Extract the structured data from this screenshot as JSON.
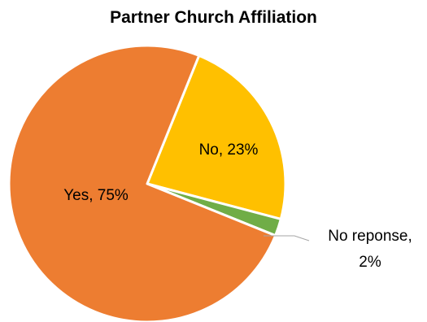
{
  "chart_data": {
    "type": "pie",
    "title": "Partner Church Affiliation",
    "legend": "none",
    "slices": [
      {
        "label": "No",
        "value": 23,
        "display": "No, 23%",
        "color": "#FFC000"
      },
      {
        "label": "No reponse",
        "value": 2,
        "display_lines": [
          "No reponse,",
          "2%"
        ],
        "color": "#70AD47"
      },
      {
        "label": "Yes",
        "value": 75,
        "display": "Yes, 75%",
        "color": "#ED7D31"
      }
    ]
  }
}
